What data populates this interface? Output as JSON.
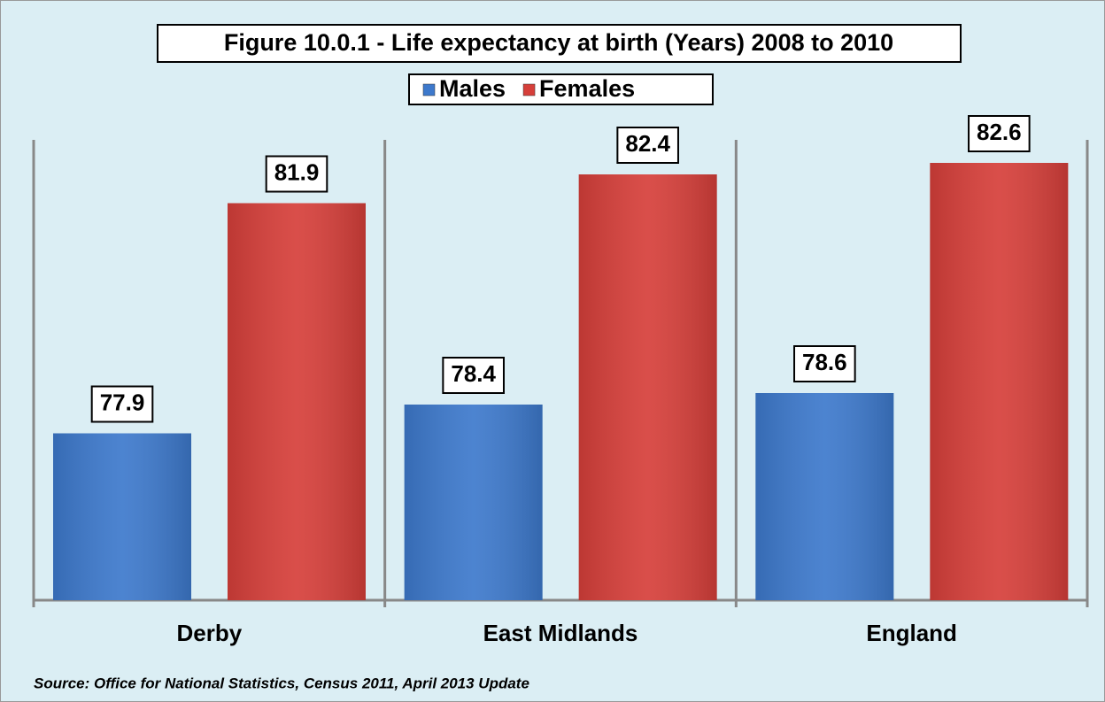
{
  "chart_data": {
    "type": "bar",
    "title": "Figure 10.0.1 - Life expectancy at birth (Years) 2008 to 2010",
    "categories": [
      "Derby",
      "East Midlands",
      "England"
    ],
    "series": [
      {
        "name": "Males",
        "color": "#3d79cc",
        "values": [
          77.9,
          78.4,
          78.6
        ]
      },
      {
        "name": "Females",
        "color": "#d63f3a",
        "values": [
          81.9,
          82.4,
          82.6
        ]
      }
    ],
    "ylim": [
      75,
      83
    ],
    "source": "Source: Office for National Statistics, Census 2011, April 2013 Update"
  }
}
